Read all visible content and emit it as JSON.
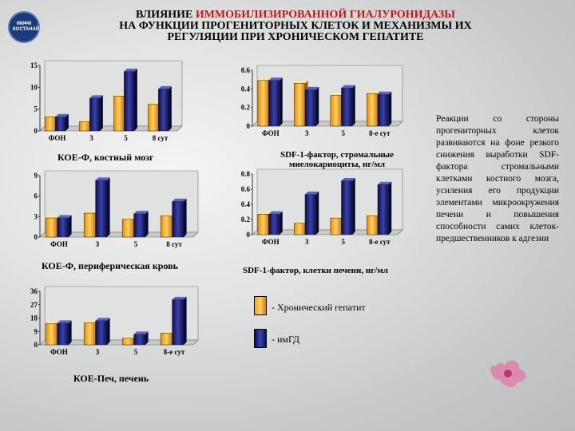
{
  "logo_text": "ИМФИ\nКОСТАНАЙ",
  "title": {
    "line1_prefix": "ВЛИЯНИЕ ",
    "line1_highlight": "ИММОБИЛИЗИРОВАННОЙ ГИАЛУРОНИДАЗЫ",
    "line2": "НА ФУНКЦИИ ПРОГЕНИТОРНЫХ КЛЕТОК И МЕХАНИЗМЫ ИХ",
    "line3": "РЕГУЛЯЦИИ ПРИ ХРОНИЧЕСКОМ ГЕПАТИТЕ"
  },
  "colors": {
    "chronic": "#f7a21c",
    "img": "#1a1f6e",
    "bg": "#e6e8e7"
  },
  "legend": {
    "chronic": "- Хронический гепатит",
    "img": "- имГД"
  },
  "note": "Реакции со стороны прогениторных клеток развиваются на фоне резкого снижения выработки SDF-фактора стромальными клетками костного мозга, усиления его продукции элементами микроокружения печени и повышения способности самих клеток-предшественников к адгезии",
  "chart_data": [
    {
      "type": "bar",
      "caption": "КОЕ-Ф, костный мозг",
      "categories": [
        "ФОН",
        "3",
        "5",
        "8 сут"
      ],
      "yticks": [
        0,
        5,
        10,
        15
      ],
      "ylim": [
        0,
        15
      ],
      "series": [
        {
          "name": "Хронический гепатит",
          "values": [
            3.2,
            2.1,
            8.0,
            6.1
          ]
        },
        {
          "name": "имГД",
          "values": [
            3.2,
            7.5,
            13.6,
            9.6
          ]
        }
      ]
    },
    {
      "type": "bar",
      "caption": "КОЕ-Ф, периферическая кровь",
      "categories": [
        "ФОН",
        "3",
        "5",
        "8 сут"
      ],
      "yticks": [
        0,
        3,
        6,
        9
      ],
      "ylim": [
        0,
        9
      ],
      "series": [
        {
          "name": "Хронический гепатит",
          "values": [
            2.8,
            3.5,
            2.6,
            3.1
          ]
        },
        {
          "name": "имГД",
          "values": [
            2.8,
            8.3,
            3.4,
            5.2
          ]
        }
      ]
    },
    {
      "type": "bar",
      "caption": "КОЕ-Печ, печень",
      "categories": [
        "ФОН",
        "3",
        "5",
        "8-е сут"
      ],
      "yticks": [
        0,
        9,
        18,
        27,
        36
      ],
      "ylim": [
        0,
        36
      ],
      "series": [
        {
          "name": "Хронический гепатит",
          "values": [
            14.2,
            14.8,
            4.4,
            7.8
          ]
        },
        {
          "name": "имГД",
          "values": [
            14.5,
            16.2,
            7.0,
            30.4
          ]
        }
      ]
    },
    {
      "type": "bar",
      "caption": "SDF-1-фактор, стромальные миелокариоциты, нг/мл",
      "categories": [
        "ФОН",
        "3",
        "5",
        "8-е сут"
      ],
      "yticks": [
        0,
        0.2,
        0.4,
        0.6
      ],
      "ylim": [
        0,
        0.6
      ],
      "series": [
        {
          "name": "Хронический гепатит",
          "values": [
            0.49,
            0.46,
            0.33,
            0.35
          ]
        },
        {
          "name": "имГД",
          "values": [
            0.49,
            0.39,
            0.41,
            0.34
          ]
        }
      ]
    },
    {
      "type": "bar",
      "caption": "SDF-1-фактор, клетки печени, нг/мл",
      "categories": [
        "ФОН",
        "3",
        "5",
        "8-е сут"
      ],
      "yticks": [
        0,
        0.2,
        0.4,
        0.6,
        0.8
      ],
      "ylim": [
        0,
        0.8
      ],
      "series": [
        {
          "name": "Хронический гепатит",
          "values": [
            0.27,
            0.15,
            0.22,
            0.25
          ]
        },
        {
          "name": "имГД",
          "values": [
            0.27,
            0.53,
            0.71,
            0.66
          ]
        }
      ]
    }
  ]
}
